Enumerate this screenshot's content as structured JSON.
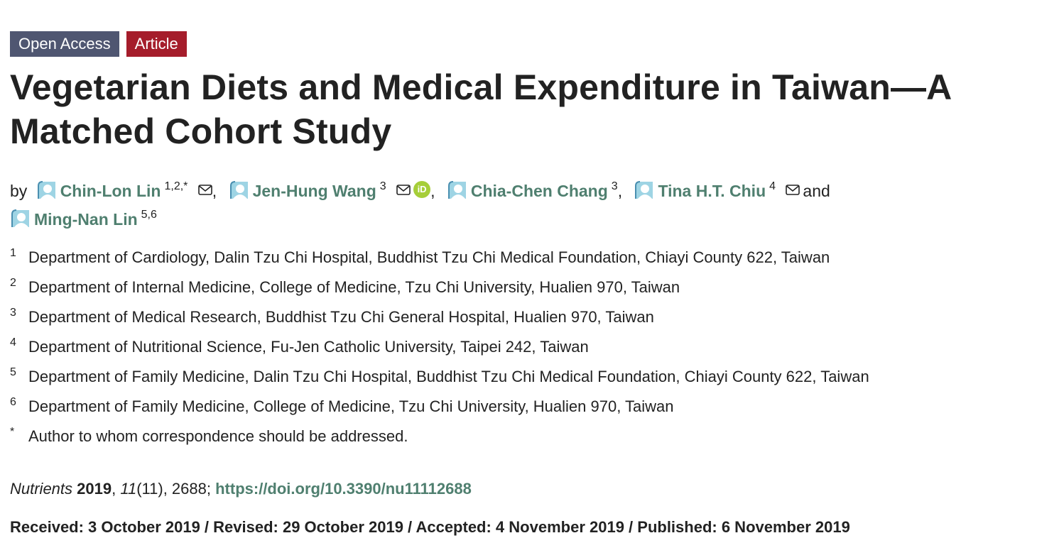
{
  "badges": {
    "open_access": "Open Access",
    "article": "Article"
  },
  "title": "Vegetarian Diets and Medical Expenditure in Taiwan—A Matched Cohort Study",
  "byline": {
    "by": "by",
    "authors": [
      {
        "name": "Chin-Lon Lin",
        "sup": "1,2,*"
      },
      {
        "name": "Jen-Hung Wang",
        "sup": "3"
      },
      {
        "name": "Chia-Chen Chang",
        "sup": "3"
      },
      {
        "name": "Tina H.T. Chiu",
        "sup": "4"
      },
      {
        "name": "Ming-Nan Lin",
        "sup": "5,6"
      }
    ],
    "comma": ",",
    "and": "and",
    "orcid": "iD"
  },
  "affiliations": [
    {
      "num": "1",
      "text": "Department of Cardiology, Dalin Tzu Chi Hospital, Buddhist Tzu Chi Medical Foundation, Chiayi County 622, Taiwan"
    },
    {
      "num": "2",
      "text": "Department of Internal Medicine, College of Medicine, Tzu Chi University, Hualien 970, Taiwan"
    },
    {
      "num": "3",
      "text": "Department of Medical Research, Buddhist Tzu Chi General Hospital, Hualien 970, Taiwan"
    },
    {
      "num": "4",
      "text": "Department of Nutritional Science, Fu-Jen Catholic University, Taipei 242, Taiwan"
    },
    {
      "num": "5",
      "text": "Department of Family Medicine, Dalin Tzu Chi Hospital, Buddhist Tzu Chi Medical Foundation, Chiayi County 622, Taiwan"
    },
    {
      "num": "6",
      "text": "Department of Family Medicine, College of Medicine, Tzu Chi University, Hualien 970, Taiwan"
    },
    {
      "num": "*",
      "text": "Author to whom correspondence should be addressed."
    }
  ],
  "citation": {
    "journal": "Nutrients",
    "year": "2019",
    "volume": "11",
    "issue_pages": "(11), 2688;",
    "doi": "https://doi.org/10.3390/nu11112688"
  },
  "dates": "Received: 3 October 2019 / Revised: 29 October 2019 / Accepted: 4 November 2019 / Published: 6 November 2019",
  "colors": {
    "link": "#4f7f6f",
    "open_access_bg": "#4f5671",
    "article_bg": "#a51d2b",
    "orcid": "#a6ce39"
  }
}
